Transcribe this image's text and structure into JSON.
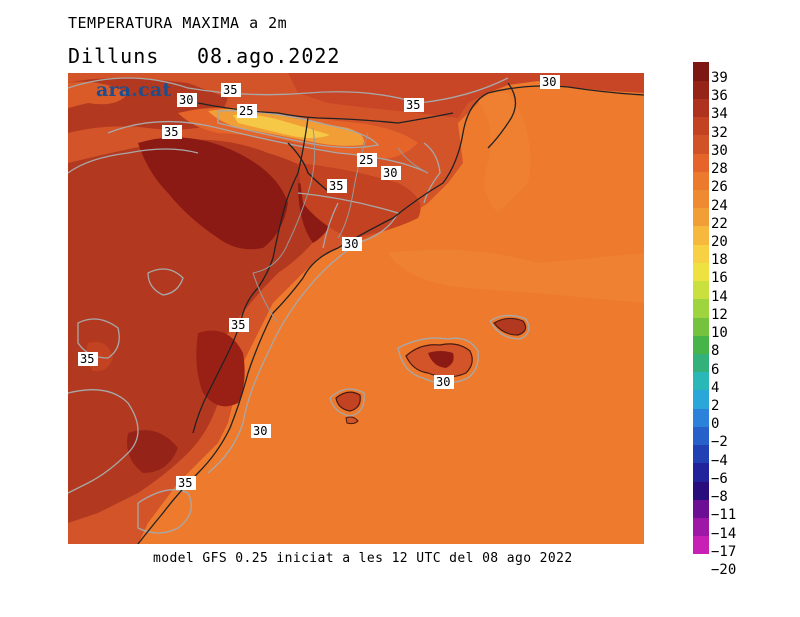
{
  "title": "TEMPERATURA MAXIMA a 2m",
  "day": "Dilluns",
  "date": "08.ago.2022",
  "logo": "ara.cat",
  "footer": "model GFS 0.25 iniciat a les 12 UTC del 08 ago 2022",
  "contour_labels": [
    "35",
    "30",
    "25",
    "35",
    "35",
    "25",
    "30",
    "35",
    "30",
    "35",
    "35",
    "30",
    "30",
    "35",
    "30"
  ],
  "legend": {
    "colors": [
      "#c81fb5",
      "#9e18a8",
      "#6d0f94",
      "#2a0d7c",
      "#22239a",
      "#2140b3",
      "#2660c8",
      "#2c82da",
      "#2aa6d8",
      "#2ab7b7",
      "#33b17a",
      "#47b44a",
      "#74c23d",
      "#9ed43e",
      "#c9e03f",
      "#eee241",
      "#f8d043",
      "#f6b83d",
      "#f29e36",
      "#ee8a31",
      "#ec7a2d",
      "#e4642a",
      "#d25227",
      "#c24222",
      "#ae321d",
      "#962318",
      "#7d1714"
    ],
    "labels": [
      "39",
      "36",
      "34",
      "32",
      "30",
      "28",
      "26",
      "24",
      "22",
      "20",
      "18",
      "16",
      "14",
      "12",
      "10",
      "8",
      "6",
      "4",
      "2",
      "0",
      "−2",
      "−4",
      "−6",
      "−8",
      "−11",
      "−14",
      "−17",
      "−20"
    ]
  },
  "palette": {
    "sea": "#ee7a2d",
    "warm": "#d4542a",
    "hot": "#b23920",
    "very_hot": "#8c1a14",
    "cool": "#f4a63c",
    "cooler": "#f6c848"
  }
}
